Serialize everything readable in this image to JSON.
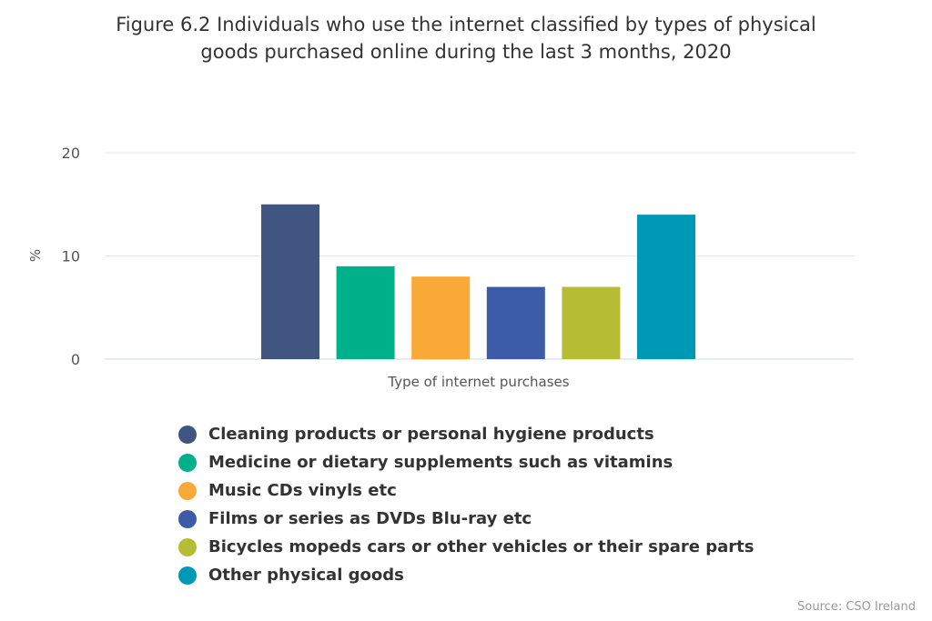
{
  "chart_data": {
    "type": "bar",
    "title": "Figure 6.2 Individuals who use the internet classified by types of physical goods purchased online during the last 3 months, 2020",
    "title_lines": [
      "Figure 6.2 Individuals who use the internet classified by types of physical",
      "goods purchased online during the last 3 months, 2020"
    ],
    "xlabel": "Type of internet purchases",
    "ylabel": "%",
    "ylim": [
      0,
      20
    ],
    "yticks": [
      "0",
      "10",
      "20"
    ],
    "grid": true,
    "legend_placement": "bottom",
    "series": [
      {
        "name": "Cleaning products or personal hygiene products",
        "value": 15,
        "color": "#405580"
      },
      {
        "name": "Medicine or dietary supplements such as vitamins",
        "value": 9,
        "color": "#00b08a"
      },
      {
        "name": "Music CDs vinyls etc",
        "value": 8,
        "color": "#f9a937"
      },
      {
        "name": "Films or series as DVDs Blu-ray etc",
        "value": 7,
        "color": "#3c5ba9"
      },
      {
        "name": "Bicycles mopeds cars or other vehicles or their spare parts",
        "value": 7,
        "color": "#b6bd34"
      },
      {
        "name": "Other physical goods",
        "value": 14,
        "color": "#0099b5"
      }
    ]
  },
  "source": "Source: CSO Ireland"
}
